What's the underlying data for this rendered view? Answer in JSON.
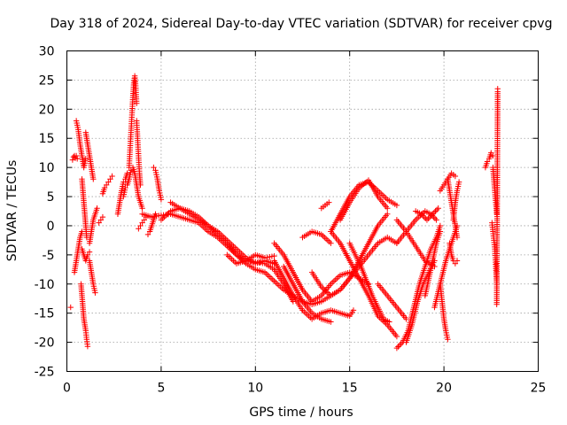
{
  "chart_data": {
    "type": "scatter",
    "title": "Day 318 of 2024, Sidereal Day-to-day VTEC variation (SDTVAR) for receiver cpvg",
    "xlabel": "GPS time / hours",
    "ylabel": "SDTVAR / TECUs",
    "xlim": [
      0,
      25
    ],
    "ylim": [
      -25,
      30
    ],
    "xticks": [
      0,
      5,
      10,
      15,
      20,
      25
    ],
    "yticks": [
      -25,
      -20,
      -15,
      -10,
      -5,
      0,
      5,
      10,
      15,
      20,
      25,
      30
    ],
    "grid": true,
    "marker": "+",
    "color": "#ff0000",
    "series": [
      {
        "name": "s01",
        "x": [
          0.2
        ],
        "y": [
          -14
        ]
      },
      {
        "name": "s02",
        "x": [
          0.3,
          0.35,
          0.4,
          0.45,
          0.5,
          0.55
        ],
        "y": [
          11.3,
          11.8,
          12.0,
          11.6,
          12.0,
          11.5
        ]
      },
      {
        "name": "s03",
        "x": [
          0.5,
          0.6,
          0.7,
          0.8,
          0.9,
          1.0
        ],
        "y": [
          18.0,
          16.5,
          14.0,
          12.0,
          10.0,
          11.5
        ]
      },
      {
        "name": "s04",
        "x": [
          0.4,
          0.5,
          0.6,
          0.7,
          0.8
        ],
        "y": [
          -8.0,
          -6.0,
          -4.0,
          -2.0,
          -1.0
        ]
      },
      {
        "name": "s05",
        "x": [
          0.8,
          0.85,
          0.9,
          0.95,
          1.0,
          1.05
        ],
        "y": [
          8.0,
          6.0,
          4.0,
          2.0,
          0.0,
          -2.0
        ]
      },
      {
        "name": "s06",
        "x": [
          0.8,
          0.9,
          1.0,
          1.1,
          1.2
        ],
        "y": [
          -4.0,
          -5.0,
          -6.0,
          -5.0,
          -4.5
        ]
      },
      {
        "name": "s07",
        "x": [
          0.75,
          0.8,
          0.85,
          0.9,
          0.95,
          1.0,
          1.05,
          1.1
        ],
        "y": [
          -10.0,
          -12.0,
          -14.0,
          -16.0,
          -17.0,
          -18.0,
          -19.5,
          -20.7
        ]
      },
      {
        "name": "s08",
        "x": [
          1.0,
          1.1,
          1.2,
          1.3,
          1.4
        ],
        "y": [
          16.0,
          14.0,
          12.0,
          10.0,
          8.0
        ]
      },
      {
        "name": "s09",
        "x": [
          1.2,
          1.3,
          1.35,
          1.4,
          1.5
        ],
        "y": [
          -6.0,
          -8.0,
          -9.0,
          -10.0,
          -11.5
        ]
      },
      {
        "name": "s10",
        "x": [
          1.2,
          1.3,
          1.4,
          1.5,
          1.6
        ],
        "y": [
          -3.0,
          -1.0,
          1.0,
          2.0,
          3.0
        ]
      },
      {
        "name": "s11",
        "x": [
          1.7,
          1.8,
          1.9
        ],
        "y": [
          0.5,
          1.0,
          1.5
        ]
      },
      {
        "name": "s12",
        "x": [
          1.9,
          2.0,
          2.1,
          2.2,
          2.3,
          2.4
        ],
        "y": [
          5.5,
          6.5,
          7.0,
          7.5,
          8.0,
          8.5
        ]
      },
      {
        "name": "s13",
        "x": [
          2.7,
          2.8,
          2.9,
          3.0,
          3.1,
          3.2
        ],
        "y": [
          2.0,
          4.0,
          6.0,
          7.5,
          8.0,
          9.0
        ]
      },
      {
        "name": "s14",
        "x": [
          3.0,
          3.1,
          3.2,
          3.3,
          3.4,
          3.5,
          3.6,
          3.7,
          3.8,
          3.9,
          4.0
        ],
        "y": [
          5.0,
          6.5,
          7.0,
          8.0,
          9.5,
          10.0,
          9.0,
          7.0,
          5.0,
          4.0,
          3.0
        ]
      },
      {
        "name": "s15",
        "x": [
          3.3,
          3.35,
          3.4,
          3.45,
          3.5,
          3.55,
          3.6,
          3.65,
          3.7
        ],
        "y": [
          10.0,
          13.0,
          16.0,
          19.0,
          22.0,
          24.5,
          25.7,
          24.0,
          21.0
        ]
      },
      {
        "name": "s16",
        "x": [
          3.7,
          3.75,
          3.8,
          3.85,
          3.9
        ],
        "y": [
          18.0,
          15.0,
          12.0,
          9.0,
          7.0
        ]
      },
      {
        "name": "s17",
        "x": [
          3.8,
          3.9,
          4.0,
          4.1,
          4.2
        ],
        "y": [
          -0.5,
          0.0,
          0.5,
          1.0,
          1.5
        ]
      },
      {
        "name": "s18",
        "x": [
          4.3,
          4.4,
          4.5,
          4.6,
          4.7
        ],
        "y": [
          -1.5,
          -1.0,
          0.0,
          1.0,
          2.0
        ]
      },
      {
        "name": "s19",
        "x": [
          4.6,
          4.7,
          4.8,
          4.9,
          5.0
        ],
        "y": [
          10.0,
          9.5,
          8.0,
          6.0,
          4.5
        ]
      },
      {
        "name": "s20",
        "x": [
          4.0,
          4.5,
          5.0,
          5.5,
          6.0,
          6.5,
          7.0,
          7.5,
          8.0,
          8.5,
          9.0,
          9.5,
          10.0,
          10.5,
          11.0,
          11.5,
          12.0
        ],
        "y": [
          2.0,
          1.5,
          1.8,
          2.0,
          1.5,
          1.0,
          0.5,
          -1.0,
          -2.0,
          -3.5,
          -5.0,
          -6.0,
          -6.2,
          -6.5,
          -7.5,
          -10.0,
          -13.0
        ]
      },
      {
        "name": "s21",
        "x": [
          5.5,
          6.0,
          6.5,
          7.0,
          7.5,
          8.0,
          8.5,
          9.0,
          9.5,
          10.0,
          10.5,
          11.0
        ],
        "y": [
          4.0,
          3.0,
          2.0,
          1.0,
          0.0,
          -1.0,
          -2.5,
          -4.0,
          -5.5,
          -6.5,
          -6.0,
          -6.5
        ]
      },
      {
        "name": "s22",
        "x": [
          5.0,
          5.5,
          6.0,
          6.5,
          7.0,
          7.5,
          8.0,
          8.5,
          9.0,
          9.5,
          10.0,
          10.5,
          11.0,
          11.5,
          12.0
        ],
        "y": [
          1.0,
          2.5,
          3.0,
          2.5,
          1.5,
          0.0,
          -1.5,
          -3.0,
          -5.0,
          -6.5,
          -7.5,
          -8.0,
          -9.5,
          -11.0,
          -12.0
        ]
      },
      {
        "name": "s23",
        "x": [
          8.5,
          9.0,
          9.5,
          10.0,
          10.5,
          11.0
        ],
        "y": [
          -5.0,
          -6.5,
          -6.0,
          -5.0,
          -5.5,
          -5.2
        ]
      },
      {
        "name": "s24",
        "x": [
          11.0,
          11.5,
          12.0,
          12.5,
          13.0,
          13.5,
          14.0,
          14.5,
          15.0,
          15.2
        ],
        "y": [
          -6.0,
          -9.0,
          -12.0,
          -14.5,
          -16.0,
          -15.0,
          -14.5,
          -15.0,
          -15.5,
          -14.5
        ]
      },
      {
        "name": "s25",
        "x": [
          11.5,
          12.0,
          12.5,
          13.0,
          13.5,
          14.0
        ],
        "y": [
          -7.0,
          -10.0,
          -13.0,
          -15.0,
          -16.0,
          -16.5
        ]
      },
      {
        "name": "s26",
        "x": [
          11.0,
          11.5,
          12.0,
          12.5,
          13.0,
          13.5,
          14.0,
          14.5,
          15.0,
          15.5,
          16.0
        ],
        "y": [
          -3.0,
          -5.0,
          -8.0,
          -11.0,
          -13.0,
          -12.0,
          -10.0,
          -8.5,
          -8.0,
          -9.0,
          -10.0
        ]
      },
      {
        "name": "s27",
        "x": [
          12.5,
          13.0,
          13.5,
          14.0
        ],
        "y": [
          -2.0,
          -1.0,
          -1.5,
          -3.0
        ]
      },
      {
        "name": "s28",
        "x": [
          12.0,
          12.5,
          13.0,
          13.5,
          14.0,
          14.5,
          15.0,
          15.5,
          16.0,
          16.5,
          17.0,
          17.5
        ],
        "y": [
          -12.0,
          -13.0,
          -13.5,
          -13.0,
          -12.0,
          -11.0,
          -9.0,
          -7.0,
          -5.0,
          -3.0,
          -2.0,
          -3.0
        ]
      },
      {
        "name": "s29",
        "x": [
          13.0,
          13.5,
          14.0,
          14.5,
          15.0,
          15.5,
          16.0,
          16.5,
          17.0
        ],
        "y": [
          -8.0,
          -10.5,
          -12.0,
          -11.0,
          -9.0,
          -6.0,
          -3.0,
          0.0,
          2.0
        ]
      },
      {
        "name": "s30",
        "x": [
          13.5,
          13.7,
          13.9
        ],
        "y": [
          3.0,
          3.5,
          4.0
        ]
      },
      {
        "name": "s31",
        "x": [
          14.0,
          14.5,
          15.0,
          15.5,
          16.0,
          16.5,
          17.0,
          17.5
        ],
        "y": [
          -1.0,
          2.0,
          5.0,
          7.0,
          7.5,
          6.0,
          4.5,
          3.5
        ]
      },
      {
        "name": "s32",
        "x": [
          14.5,
          15.0,
          15.5,
          16.0,
          16.5,
          17.0
        ],
        "y": [
          1.0,
          4.0,
          6.5,
          7.8,
          5.0,
          3.0
        ]
      },
      {
        "name": "s33",
        "x": [
          15.0,
          15.3,
          15.6,
          15.9,
          16.2,
          16.5,
          16.8,
          17.1
        ],
        "y": [
          -3.0,
          -5.0,
          -7.0,
          -9.5,
          -12.0,
          -14.0,
          -16.0,
          -16.5
        ]
      },
      {
        "name": "s34",
        "x": [
          14.0,
          14.5,
          15.0,
          15.5,
          16.0,
          16.5,
          17.0,
          17.5
        ],
        "y": [
          -1.0,
          -3.0,
          -6.0,
          -9.0,
          -12.0,
          -15.5,
          -17.0,
          -19.0
        ]
      },
      {
        "name": "s35",
        "x": [
          16.5,
          17.0,
          17.5,
          18.0
        ],
        "y": [
          -10.0,
          -12.0,
          -14.0,
          -16.0
        ]
      },
      {
        "name": "s36",
        "x": [
          17.5,
          17.8,
          18.1,
          18.4,
          18.7,
          19.0,
          19.3,
          19.6,
          19.8
        ],
        "y": [
          -21.0,
          -20.0,
          -18.0,
          -14.0,
          -10.0,
          -7.0,
          -4.0,
          -2.0,
          0.0
        ]
      },
      {
        "name": "s37",
        "x": [
          18.0,
          18.3,
          18.6,
          18.9,
          19.2,
          19.5
        ],
        "y": [
          -20.0,
          -17.0,
          -13.0,
          -10.0,
          -8.0,
          -6.0
        ]
      },
      {
        "name": "s38",
        "x": [
          17.5,
          18.0,
          18.5,
          19.0,
          19.3,
          19.6
        ],
        "y": [
          -3.0,
          -1.0,
          1.0,
          2.5,
          2.0,
          1.0
        ]
      },
      {
        "name": "s39",
        "x": [
          17.5,
          18.0,
          18.5,
          19.0,
          19.5
        ],
        "y": [
          1.0,
          -1.0,
          -3.5,
          -6.0,
          -7.0
        ]
      },
      {
        "name": "s40",
        "x": [
          18.5,
          18.8,
          19.1,
          19.4,
          19.7
        ],
        "y": [
          2.5,
          2.0,
          1.0,
          2.0,
          3.0
        ]
      },
      {
        "name": "s41",
        "x": [
          19.0,
          19.2,
          19.4,
          19.6,
          19.8
        ],
        "y": [
          -12.0,
          -9.0,
          -6.0,
          -3.0,
          -1.0
        ]
      },
      {
        "name": "s42",
        "x": [
          19.5,
          19.8,
          20.1,
          20.4,
          20.7
        ],
        "y": [
          -14.0,
          -10.0,
          -6.0,
          -3.0,
          0.0
        ]
      },
      {
        "name": "s43",
        "x": [
          19.8,
          20.0,
          20.2,
          20.4,
          20.6
        ],
        "y": [
          6.0,
          7.0,
          8.0,
          9.0,
          8.5
        ]
      },
      {
        "name": "s44",
        "x": [
          19.8,
          19.9,
          20.0,
          20.1,
          20.2
        ],
        "y": [
          -10.0,
          -13.0,
          -16.0,
          -18.0,
          -19.5
        ]
      },
      {
        "name": "s45",
        "x": [
          20.2,
          20.3,
          20.4,
          20.5,
          20.6,
          20.7
        ],
        "y": [
          8.0,
          6.0,
          4.0,
          2.0,
          0.0,
          -2.0
        ]
      },
      {
        "name": "s46",
        "x": [
          20.3,
          20.4,
          20.5,
          20.6,
          20.7
        ],
        "y": [
          -3.0,
          -5.0,
          -6.0,
          -6.5,
          -6.0
        ]
      },
      {
        "name": "s47",
        "x": [
          20.5,
          20.6,
          20.7,
          20.8
        ],
        "y": [
          1.0,
          4.0,
          6.0,
          7.5
        ]
      },
      {
        "name": "s48",
        "x": [
          22.2,
          22.3,
          22.4,
          22.5,
          22.6
        ],
        "y": [
          10.0,
          11.0,
          11.5,
          12.5,
          12.0
        ]
      },
      {
        "name": "s49",
        "x": [
          22.6,
          22.65,
          22.7,
          22.75,
          22.8
        ],
        "y": [
          10.0,
          8.0,
          6.0,
          4.0,
          2.0
        ]
      },
      {
        "name": "s50",
        "x": [
          22.55,
          22.6,
          22.65,
          22.7,
          22.75,
          22.8
        ],
        "y": [
          0.5,
          -1.0,
          -2.5,
          -4.0,
          -7.0,
          -9.8
        ]
      },
      {
        "name": "s51",
        "x": [
          22.8,
          22.85
        ],
        "y": [
          -13.5,
          23.0
        ]
      },
      {
        "name": "s52",
        "x": [
          22.85
        ],
        "y": [
          23.5
        ]
      }
    ]
  }
}
